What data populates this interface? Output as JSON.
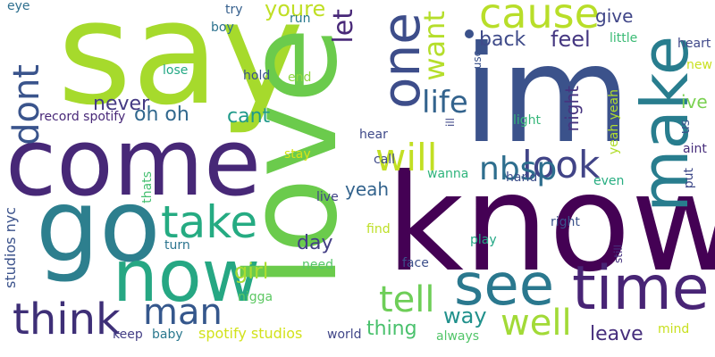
{
  "words": [
    {
      "text": "say",
      "color": "#A6DA2C"
    },
    {
      "text": "come",
      "color": "#472877"
    },
    {
      "text": "go",
      "color": "#2D7F8E"
    },
    {
      "text": "now",
      "color": "#26A783"
    },
    {
      "text": "think",
      "color": "#3E2F77"
    },
    {
      "text": "man",
      "color": "#35578C"
    },
    {
      "text": "take",
      "color": "#25AB82"
    },
    {
      "text": "love",
      "color": "#6BCB4C"
    },
    {
      "text": "know",
      "color": "#440154"
    },
    {
      "text": "im",
      "color": "#3B528B"
    },
    {
      "text": "time",
      "color": "#482475"
    },
    {
      "text": "see",
      "color": "#2A788E"
    },
    {
      "text": "make",
      "color": "#287D8E"
    },
    {
      "text": "one",
      "color": "#3D4D8A"
    },
    {
      "text": "cause",
      "color": "#B8DE29"
    },
    {
      "text": "look",
      "color": "#414487"
    },
    {
      "text": "will",
      "color": "#C2DF23"
    },
    {
      "text": "tell",
      "color": "#6ECE58"
    },
    {
      "text": "well",
      "color": "#A2DA37"
    },
    {
      "text": "dont",
      "color": "#3A548C"
    },
    {
      "text": "life",
      "color": "#33638D"
    },
    {
      "text": "nbsp",
      "color": "#2E6E8E"
    },
    {
      "text": "want",
      "color": "#B5DE2B"
    },
    {
      "text": "let",
      "color": "#482878"
    },
    {
      "text": "youre",
      "color": "#C0DF25"
    },
    {
      "text": "back",
      "color": "#3E4A89"
    },
    {
      "text": "feel",
      "color": "#453781"
    },
    {
      "text": "give",
      "color": "#404688"
    },
    {
      "text": "never",
      "color": "#443A83"
    },
    {
      "text": "oh oh",
      "color": "#31688E"
    },
    {
      "text": "cant",
      "color": "#1F9A8A"
    },
    {
      "text": "girl",
      "color": "#AADC32"
    },
    {
      "text": "yeah",
      "color": "#33638D"
    },
    {
      "text": "day",
      "color": "#433E85"
    },
    {
      "text": "way",
      "color": "#21918C"
    },
    {
      "text": "thing",
      "color": "#4AC16D"
    },
    {
      "text": "leave",
      "color": "#462E7C"
    },
    {
      "text": "night",
      "color": "#46337F"
    },
    {
      "text": "ive",
      "color": "#7AD151"
    },
    {
      "text": "heart",
      "color": "#3F4889"
    },
    {
      "text": "little",
      "color": "#3BBB75"
    },
    {
      "text": "new",
      "color": "#C9E120"
    },
    {
      "text": "yeah yeah",
      "color": "#B2DD2D"
    },
    {
      "text": "aint",
      "color": "#472D7B"
    },
    {
      "text": "put",
      "color": "#3E4989"
    },
    {
      "text": "us",
      "color": "#3A548C"
    },
    {
      "text": "eye",
      "color": "#2E6F8E"
    },
    {
      "text": "try",
      "color": "#355F8D"
    },
    {
      "text": "boy",
      "color": "#2C728E"
    },
    {
      "text": "run",
      "color": "#29798E"
    },
    {
      "text": "lose",
      "color": "#23A884"
    },
    {
      "text": "hold",
      "color": "#3B528B"
    },
    {
      "text": "end",
      "color": "#90D743"
    },
    {
      "text": "record spotify",
      "color": "#482878"
    },
    {
      "text": "studios nyc",
      "color": "#3B528B"
    },
    {
      "text": "thats",
      "color": "#44BF70"
    },
    {
      "text": "turn",
      "color": "#2B748E"
    },
    {
      "text": "need",
      "color": "#56C667"
    },
    {
      "text": "nigga",
      "color": "#5DC863"
    },
    {
      "text": "keep",
      "color": "#433E85"
    },
    {
      "text": "baby",
      "color": "#2A788E"
    },
    {
      "text": "spotify studios",
      "color": "#D2E21B"
    },
    {
      "text": "hear",
      "color": "#3E4989"
    },
    {
      "text": "stay",
      "color": "#D8E219"
    },
    {
      "text": "live",
      "color": "#414487"
    },
    {
      "text": "call",
      "color": "#3E4A89"
    },
    {
      "text": "wanna",
      "color": "#2FB47C"
    },
    {
      "text": "hand",
      "color": "#3D4E8A"
    },
    {
      "text": "find",
      "color": "#BDDF26"
    },
    {
      "text": "face",
      "color": "#3C4F8A"
    },
    {
      "text": "play",
      "color": "#22A785"
    },
    {
      "text": "right",
      "color": "#3B528B"
    },
    {
      "text": "world",
      "color": "#404688"
    },
    {
      "text": "always",
      "color": "#52C569"
    },
    {
      "text": "mind",
      "color": "#C8E020"
    },
    {
      "text": "use",
      "color": "#3B528B"
    },
    {
      "text": "ill",
      "color": "#3F4788"
    },
    {
      "text": "light",
      "color": "#35B779"
    },
    {
      "text": "even",
      "color": "#27AD81"
    },
    {
      "text": "still",
      "color": "#46327E"
    }
  ]
}
